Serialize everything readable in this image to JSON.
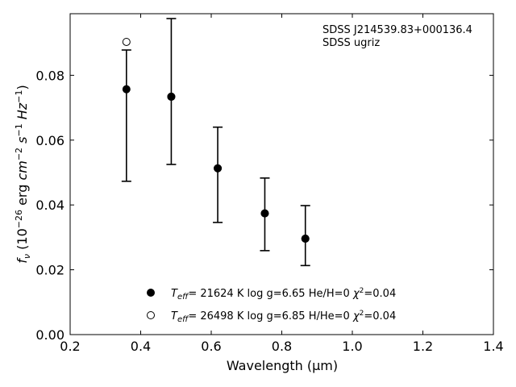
{
  "chart_data": {
    "type": "scatter",
    "title": "",
    "xlabel": "Wavelength (μm)",
    "xlim": [
      0.2,
      1.4
    ],
    "ylim": [
      0.0,
      0.099
    ],
    "xticks": [
      "0.2",
      "0.4",
      "0.6",
      "0.8",
      "1.0",
      "1.2",
      "1.4"
    ],
    "yticks": [
      "0.00",
      "0.02",
      "0.04",
      "0.06",
      "0.08"
    ],
    "grid": false,
    "legend_position": "bottom-center",
    "annotation": [
      "SDSS J214539.83+000136.4",
      "SDSS ugriz"
    ],
    "series": [
      {
        "marker": "filled-circle",
        "x": [
          0.4867,
          0.6184,
          0.7519,
          0.8668
        ],
        "y": [
          0.0734,
          0.0513,
          0.0374,
          0.0296
        ],
        "legend": {
          "teff": "= 21624 K",
          "logg": "log g=6.65",
          "comp": "He/H=0",
          "chi2": "=0.04"
        }
      },
      {
        "marker": "open-circle",
        "x": [
          0.3596
        ],
        "y": [
          0.0903
        ],
        "legend": {
          "teff": "= 26498 K",
          "logg": "log g=6.85",
          "comp": "H/He=0",
          "chi2": "=0.04"
        }
      }
    ],
    "observed": {
      "x": [
        0.3596,
        0.4867,
        0.6184,
        0.7519,
        0.8668
      ],
      "y": [
        0.0757,
        0.0734,
        0.0513,
        0.0374,
        0.0296
      ],
      "y_low": [
        0.0473,
        0.0525,
        0.0346,
        0.0259,
        0.0213
      ],
      "y_high": [
        0.0878,
        0.0975,
        0.064,
        0.0483,
        0.0398
      ]
    }
  }
}
